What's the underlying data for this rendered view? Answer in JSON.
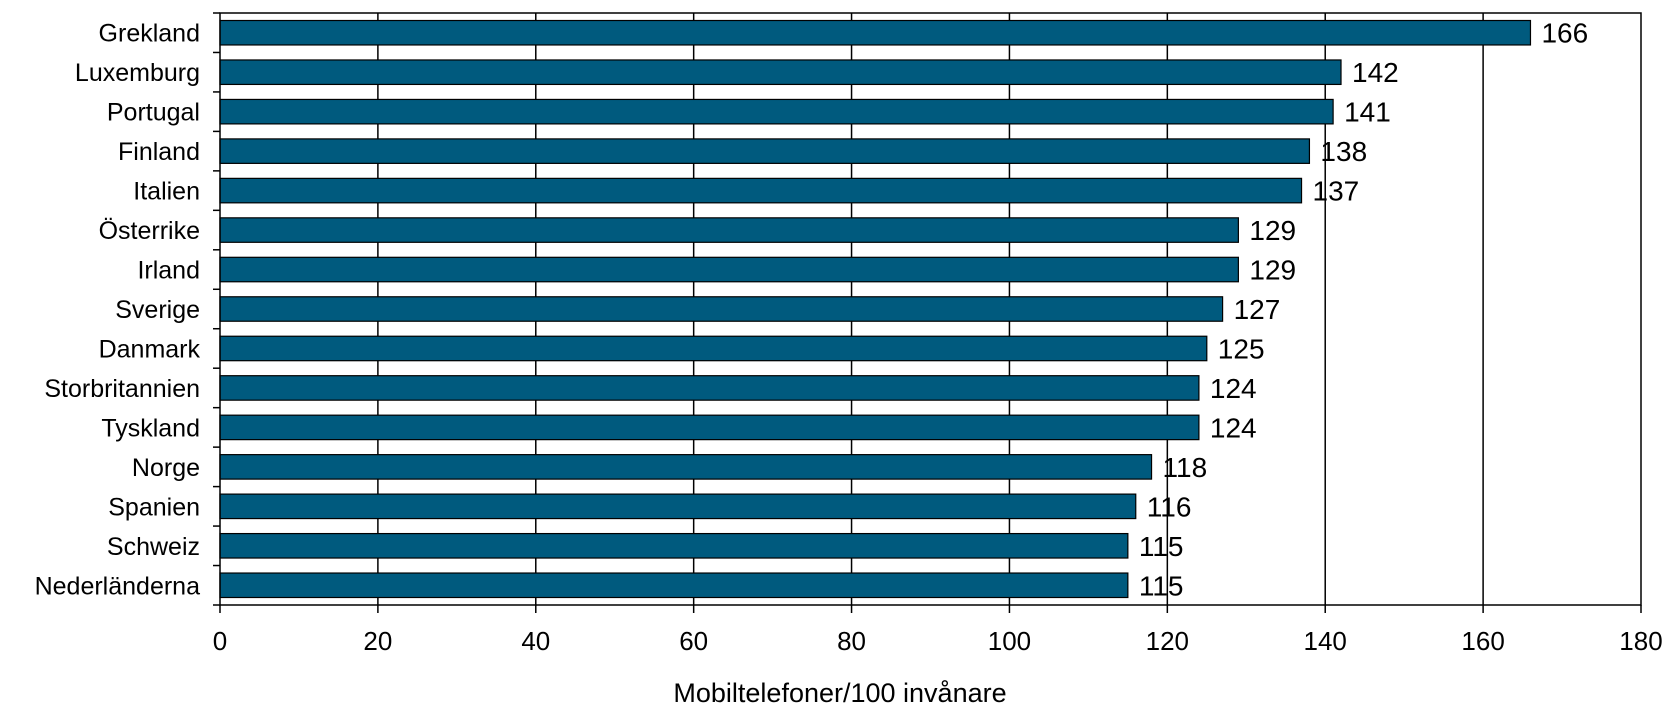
{
  "chart_data": {
    "type": "bar",
    "orientation": "horizontal",
    "categories": [
      "Grekland",
      "Luxemburg",
      "Portugal",
      "Finland",
      "Italien",
      "Österrike",
      "Irland",
      "Sverige",
      "Danmark",
      "Storbritannien",
      "Tyskland",
      "Norge",
      "Spanien",
      "Schweiz",
      "Nederländerna"
    ],
    "values": [
      166,
      142,
      141,
      138,
      137,
      129,
      129,
      127,
      125,
      124,
      124,
      118,
      116,
      115,
      115
    ],
    "data_labels": [
      "166",
      "142",
      "141",
      "138",
      "137",
      "129",
      "129",
      "127",
      "125",
      "124",
      "124",
      "118",
      "116",
      "115",
      "115"
    ],
    "title": "",
    "xlabel": "Mobiltelefoner/100 invånare",
    "ylabel": "",
    "xlim": [
      0,
      180
    ],
    "x_ticks": [
      0,
      20,
      40,
      60,
      80,
      100,
      120,
      140,
      160,
      180
    ],
    "x_tick_labels": [
      "0",
      "20",
      "40",
      "60",
      "80",
      "100",
      "120",
      "140",
      "160",
      "180"
    ],
    "grid": "vertical gridlines at major ticks",
    "legend": "none",
    "bar_color": "#005A7E",
    "bar_edge_color": "#000000",
    "grid_color": "#000000"
  }
}
